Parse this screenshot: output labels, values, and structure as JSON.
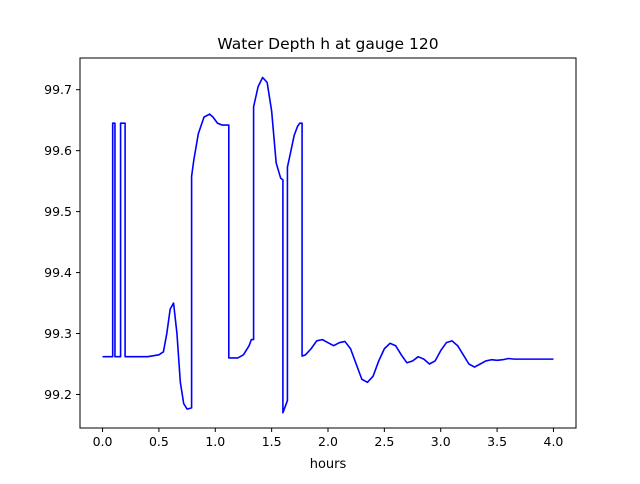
{
  "chart_data": {
    "type": "line",
    "title": "Water Depth h at gauge 120",
    "xlabel": "hours",
    "ylabel": "",
    "xlim": [
      -0.2,
      4.2
    ],
    "ylim": [
      99.145,
      99.752
    ],
    "xticks": [
      0.0,
      0.5,
      1.0,
      1.5,
      2.0,
      2.5,
      3.0,
      3.5,
      4.0
    ],
    "xtick_labels": [
      "0.0",
      "0.5",
      "1.0",
      "1.5",
      "2.0",
      "2.5",
      "3.0",
      "3.5",
      "4.0"
    ],
    "yticks": [
      99.2,
      99.3,
      99.4,
      99.5,
      99.6,
      99.7
    ],
    "ytick_labels": [
      "99.2",
      "99.3",
      "99.4",
      "99.5",
      "99.6",
      "99.7"
    ],
    "grid": false,
    "series": [
      {
        "color": "#0000ff",
        "x": [
          0.0,
          0.09,
          0.09,
          0.11,
          0.11,
          0.16,
          0.16,
          0.2,
          0.2,
          0.3,
          0.4,
          0.5,
          0.54,
          0.57,
          0.6,
          0.63,
          0.66,
          0.69,
          0.72,
          0.75,
          0.79,
          0.79,
          0.81,
          0.85,
          0.9,
          0.95,
          0.98,
          1.02,
          1.06,
          1.1,
          1.12,
          1.12,
          1.2,
          1.25,
          1.3,
          1.32,
          1.34,
          1.34,
          1.38,
          1.42,
          1.46,
          1.5,
          1.54,
          1.58,
          1.6,
          1.6,
          1.64,
          1.64,
          1.66,
          1.7,
          1.73,
          1.75,
          1.77,
          1.77,
          1.8,
          1.85,
          1.9,
          1.95,
          2.0,
          2.05,
          2.1,
          2.15,
          2.2,
          2.25,
          2.3,
          2.35,
          2.4,
          2.45,
          2.5,
          2.55,
          2.6,
          2.65,
          2.7,
          2.75,
          2.8,
          2.85,
          2.9,
          2.95,
          3.0,
          3.05,
          3.1,
          3.15,
          3.2,
          3.25,
          3.3,
          3.35,
          3.4,
          3.45,
          3.5,
          3.55,
          3.6,
          3.65,
          3.7,
          3.75,
          3.8,
          3.85,
          3.9,
          3.95,
          4.0
        ],
        "y": [
          99.262,
          99.262,
          99.645,
          99.645,
          99.262,
          99.262,
          99.645,
          99.645,
          99.262,
          99.262,
          99.262,
          99.265,
          99.27,
          99.3,
          99.34,
          99.35,
          99.3,
          99.22,
          99.185,
          99.176,
          99.178,
          99.558,
          99.585,
          99.628,
          99.655,
          99.66,
          99.655,
          99.645,
          99.642,
          99.642,
          99.642,
          99.26,
          99.26,
          99.265,
          99.28,
          99.29,
          99.29,
          99.672,
          99.705,
          99.72,
          99.712,
          99.665,
          99.58,
          99.555,
          99.552,
          99.17,
          99.19,
          99.573,
          99.59,
          99.625,
          99.64,
          99.645,
          99.645,
          99.263,
          99.265,
          99.275,
          99.288,
          99.29,
          99.285,
          99.28,
          99.285,
          99.287,
          99.275,
          99.25,
          99.225,
          99.22,
          99.23,
          99.255,
          99.275,
          99.284,
          99.28,
          99.265,
          99.252,
          99.255,
          99.262,
          99.258,
          99.25,
          99.255,
          99.272,
          99.285,
          99.288,
          99.28,
          99.265,
          99.25,
          99.245,
          99.25,
          99.255,
          99.257,
          99.256,
          99.257,
          99.259,
          99.258,
          99.258,
          99.258,
          99.258,
          99.258,
          99.258,
          99.258,
          99.258
        ]
      }
    ]
  }
}
